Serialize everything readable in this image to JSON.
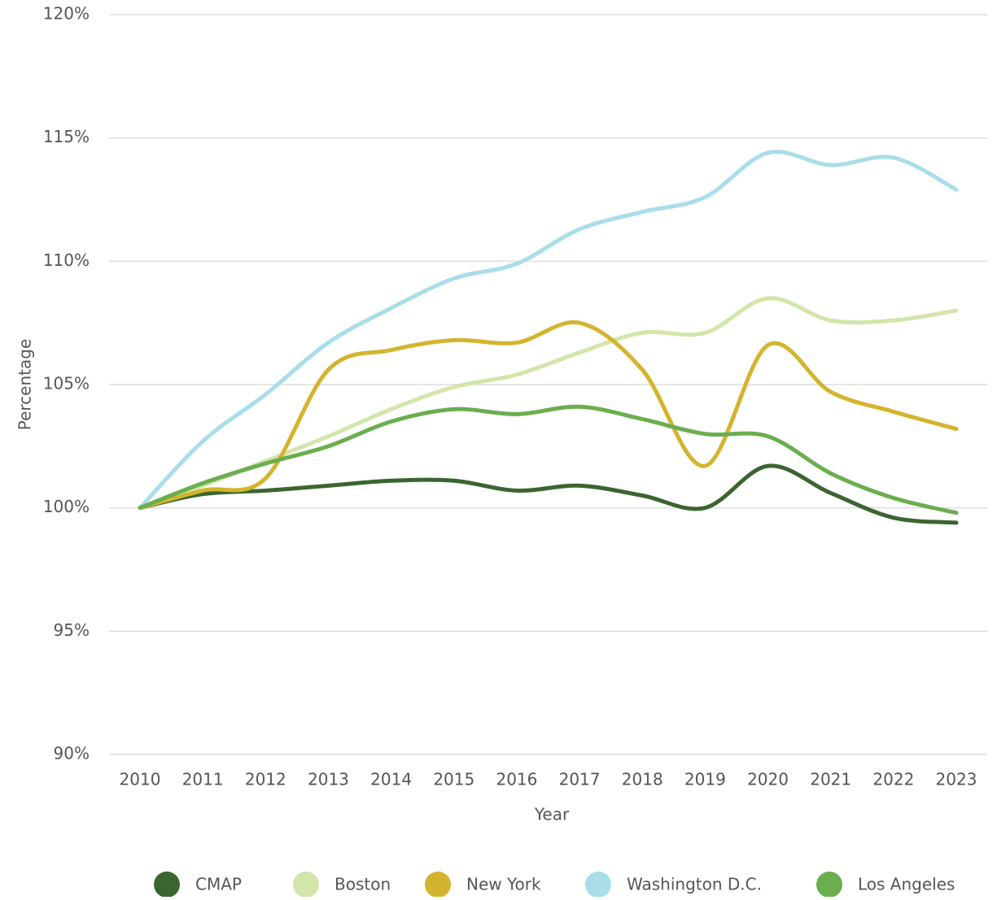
{
  "chart_data": {
    "type": "line",
    "x_label": "Year",
    "y_label": "Percentage",
    "categories": [
      "2010",
      "2011",
      "2012",
      "2013",
      "2014",
      "2015",
      "2016",
      "2017",
      "2018",
      "2019",
      "2020",
      "2021",
      "2022",
      "2023"
    ],
    "series": [
      {
        "name": "CMAP",
        "color": "#3b6530",
        "values": [
          100,
          100.56,
          100.7,
          100.9,
          101.1,
          101.1,
          100.7,
          100.9,
          100.5,
          100.0,
          101.7,
          100.6,
          99.6,
          99.4
        ]
      },
      {
        "name": "Boston",
        "color": "#d3e6aa",
        "values": [
          100,
          100.9,
          101.9,
          102.9,
          104.0,
          104.9,
          105.4,
          106.3,
          107.1,
          107.1,
          108.5,
          107.6,
          107.6,
          108.0
        ]
      },
      {
        "name": "New York",
        "color": "#d4b42e",
        "values": [
          100,
          100.7,
          101.2,
          105.6,
          106.4,
          106.8,
          106.7,
          107.5,
          105.6,
          101.7,
          106.6,
          104.7,
          103.9,
          103.2
        ]
      },
      {
        "name": "Washington D.C.",
        "color": "#a9dde9",
        "values": [
          100,
          102.7,
          104.6,
          106.7,
          108.1,
          109.3,
          109.9,
          111.3,
          112.0,
          112.6,
          114.4,
          113.9,
          114.2,
          112.9
        ]
      },
      {
        "name": "Los Angeles",
        "color": "#6aae4e",
        "values": [
          100,
          101.0,
          101.8,
          102.5,
          103.5,
          104.0,
          103.8,
          104.1,
          103.6,
          103.0,
          102.9,
          101.4,
          100.4,
          99.8
        ]
      }
    ],
    "ylim": [
      90,
      120
    ],
    "yticks": [
      {
        "value": 90,
        "label": "90%"
      },
      {
        "value": 95,
        "label": "95%"
      },
      {
        "value": 100,
        "label": "100%"
      },
      {
        "value": 105,
        "label": "105%"
      },
      {
        "value": 110,
        "label": "110%"
      },
      {
        "value": 115,
        "label": "115%"
      },
      {
        "value": 120,
        "label": "120%"
      }
    ],
    "grid": true,
    "legend": "bottom"
  }
}
